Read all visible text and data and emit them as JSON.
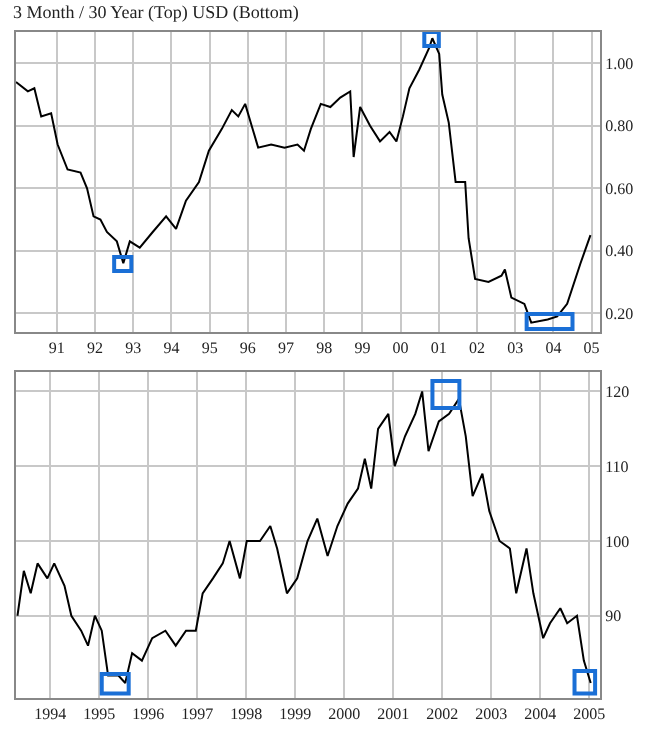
{
  "chart_data": [
    {
      "type": "line",
      "title": "3 Month / 30 Year (Top) USD (Bottom)",
      "color": "#000000",
      "grid": true,
      "x": [
        1989.93,
        1990.24,
        1990.41,
        1990.59,
        1990.85,
        1991.02,
        1991.28,
        1991.62,
        1991.79,
        1991.96,
        1992.14,
        1992.31,
        1992.57,
        1992.74,
        1992.91,
        1993.17,
        1993.51,
        1993.86,
        1994.12,
        1994.38,
        1994.72,
        1994.98,
        1995.32,
        1995.58,
        1995.75,
        1995.93,
        1996.1,
        1996.27,
        1996.61,
        1996.96,
        1997.3,
        1997.47,
        1997.65,
        1997.91,
        1998.16,
        1998.42,
        1998.68,
        1998.77,
        1998.94,
        1999.2,
        1999.46,
        1999.71,
        1999.89,
        2000.06,
        2000.23,
        2000.49,
        2000.75,
        2000.83,
        2001.01,
        2001.09,
        2001.26,
        2001.44,
        2001.69,
        2001.78,
        2001.95,
        2002.3,
        2002.64,
        2002.73,
        2002.9,
        2003.24,
        2003.42,
        2003.85,
        2004.1,
        2004.36,
        2004.71,
        2004.97
      ],
      "values": [
        0.94,
        0.91,
        0.92,
        0.83,
        0.84,
        0.74,
        0.66,
        0.65,
        0.6,
        0.51,
        0.5,
        0.46,
        0.43,
        0.36,
        0.43,
        0.41,
        0.46,
        0.51,
        0.47,
        0.56,
        0.62,
        0.72,
        0.79,
        0.85,
        0.83,
        0.87,
        0.8,
        0.73,
        0.74,
        0.73,
        0.74,
        0.72,
        0.79,
        0.87,
        0.86,
        0.89,
        0.91,
        0.7,
        0.86,
        0.8,
        0.75,
        0.78,
        0.75,
        0.83,
        0.92,
        0.98,
        1.05,
        1.08,
        1.03,
        0.9,
        0.81,
        0.62,
        0.62,
        0.44,
        0.31,
        0.3,
        0.32,
        0.34,
        0.25,
        0.23,
        0.17,
        0.18,
        0.19,
        0.23,
        0.36,
        0.45
      ],
      "xlim": [
        1989.93,
        2005.22
      ],
      "ylim": [
        0.14,
        1.1
      ],
      "xticks": [
        {
          "value": 1991,
          "label": "91"
        },
        {
          "value": 1992,
          "label": "92"
        },
        {
          "value": 1993,
          "label": "93"
        },
        {
          "value": 1994,
          "label": "94"
        },
        {
          "value": 1995,
          "label": "95"
        },
        {
          "value": 1996,
          "label": "96"
        },
        {
          "value": 1997,
          "label": "97"
        },
        {
          "value": 1998,
          "label": "98"
        },
        {
          "value": 1999,
          "label": "99"
        },
        {
          "value": 2000,
          "label": "00"
        },
        {
          "value": 2001,
          "label": "01"
        },
        {
          "value": 2002,
          "label": "02"
        },
        {
          "value": 2003,
          "label": "03"
        },
        {
          "value": 2004,
          "label": "04"
        },
        {
          "value": 2005,
          "label": "05"
        }
      ],
      "yticks": [
        {
          "value": 0.2,
          "label": "0.20"
        },
        {
          "value": 0.4,
          "label": "0.40"
        },
        {
          "value": 0.6,
          "label": "0.60"
        },
        {
          "value": 0.8,
          "label": "0.80"
        },
        {
          "value": 1.0,
          "label": "1.00"
        }
      ]
    },
    {
      "type": "line",
      "color": "#000000",
      "grid": true,
      "x": [
        1993.33,
        1993.46,
        1993.6,
        1993.74,
        1993.94,
        1994.08,
        1994.29,
        1994.43,
        1994.63,
        1994.77,
        1994.91,
        1995.05,
        1995.18,
        1995.39,
        1995.53,
        1995.67,
        1995.87,
        1996.08,
        1996.35,
        1996.56,
        1996.77,
        1996.97,
        1997.11,
        1997.32,
        1997.52,
        1997.66,
        1997.87,
        1998.01,
        1998.28,
        1998.49,
        1998.63,
        1998.83,
        1999.04,
        1999.25,
        1999.45,
        1999.66,
        1999.86,
        2000.07,
        2000.28,
        2000.42,
        2000.55,
        2000.69,
        2000.9,
        2001.03,
        2001.24,
        2001.45,
        2001.59,
        2001.72,
        2001.93,
        2002.14,
        2002.34,
        2002.48,
        2002.62,
        2002.82,
        2002.96,
        2003.17,
        2003.38,
        2003.51,
        2003.72,
        2003.86,
        2004.06,
        2004.2,
        2004.41,
        2004.55,
        2004.75,
        2004.89,
        2005.03
      ],
      "values": [
        90,
        96,
        93,
        97,
        95,
        97,
        94,
        90,
        88,
        86,
        90,
        88,
        82,
        82,
        81,
        85,
        84,
        87,
        88,
        86,
        88,
        88,
        93,
        95,
        97,
        100,
        95,
        100,
        100,
        102,
        99,
        93,
        95,
        100,
        103,
        98,
        102,
        105,
        107,
        111,
        107,
        115,
        117,
        110,
        114,
        117,
        120,
        112,
        116,
        117,
        119,
        114,
        106,
        109,
        104,
        100,
        99,
        93,
        99,
        93,
        87,
        89,
        91,
        89,
        90,
        84,
        81
      ],
      "xlim": [
        1993.3,
        2005.22
      ],
      "ylim": [
        79,
        122.6
      ],
      "xticks": [
        1994,
        1995,
        1996,
        1997,
        1998,
        1999,
        2000,
        2001,
        2002,
        2003,
        2004,
        2005
      ],
      "yticks": [
        90,
        100,
        110,
        120
      ]
    }
  ]
}
